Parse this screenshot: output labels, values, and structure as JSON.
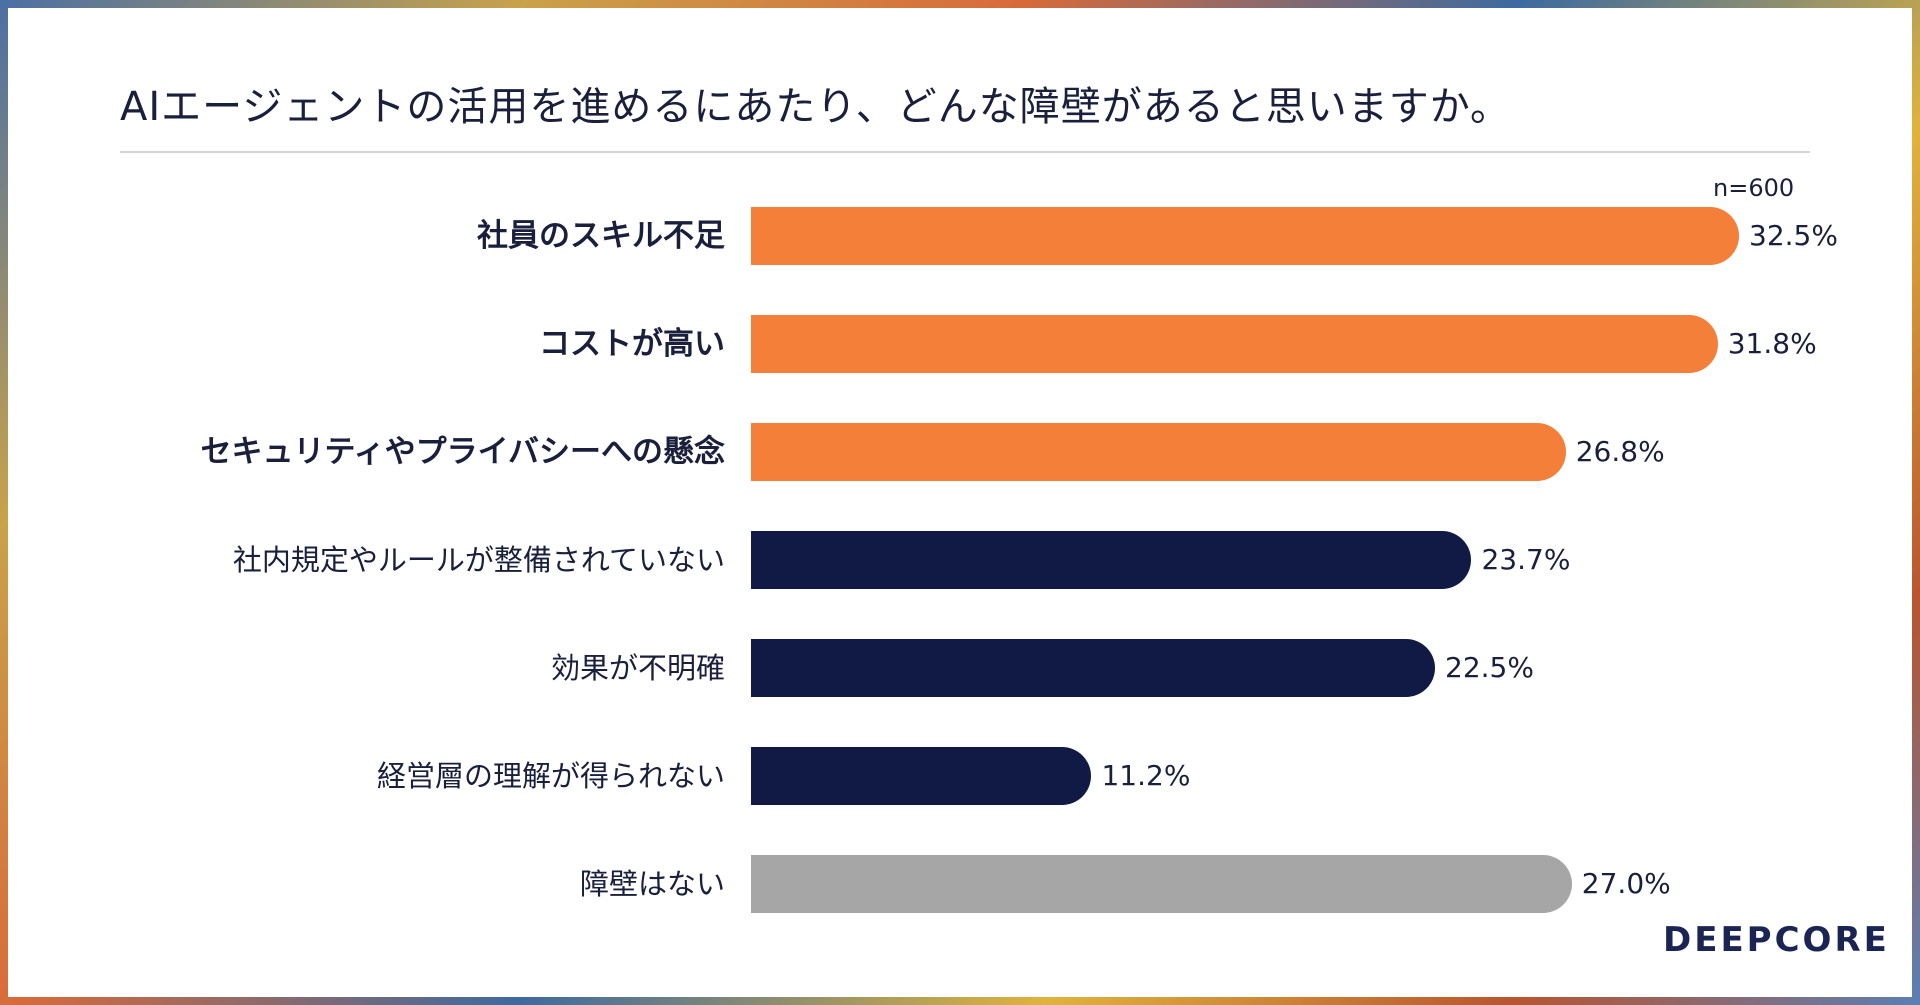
{
  "title": "AIエージェントの活用を進めるにあたり、どんな障壁があると思いますか。",
  "sample_size": "n=600",
  "brand": "DEEPCORE",
  "colors": {
    "highlight": "#f47f38",
    "primary": "#111a45",
    "neutral": "#a6a6a6"
  },
  "chart_data": {
    "type": "bar",
    "orientation": "horizontal",
    "categories": [
      "社員のスキル不足",
      "コストが高い",
      "セキュリティやプライバシーへの懸念",
      "社内規定やルールが整備されていない",
      "効果が不明確",
      "経営層の理解が得られない",
      "障壁はない"
    ],
    "values": [
      32.5,
      31.8,
      26.8,
      23.7,
      22.5,
      11.2,
      27.0
    ],
    "value_labels": [
      "32.5%",
      "31.8%",
      "26.8%",
      "23.7%",
      "22.5%",
      "11.2%",
      "27.0%"
    ],
    "bar_colors": [
      "highlight",
      "highlight",
      "highlight",
      "primary",
      "primary",
      "primary",
      "neutral"
    ],
    "bold_labels": [
      true,
      true,
      true,
      false,
      false,
      false,
      false
    ],
    "unit": "%",
    "xlim": [
      0,
      32.5
    ]
  }
}
